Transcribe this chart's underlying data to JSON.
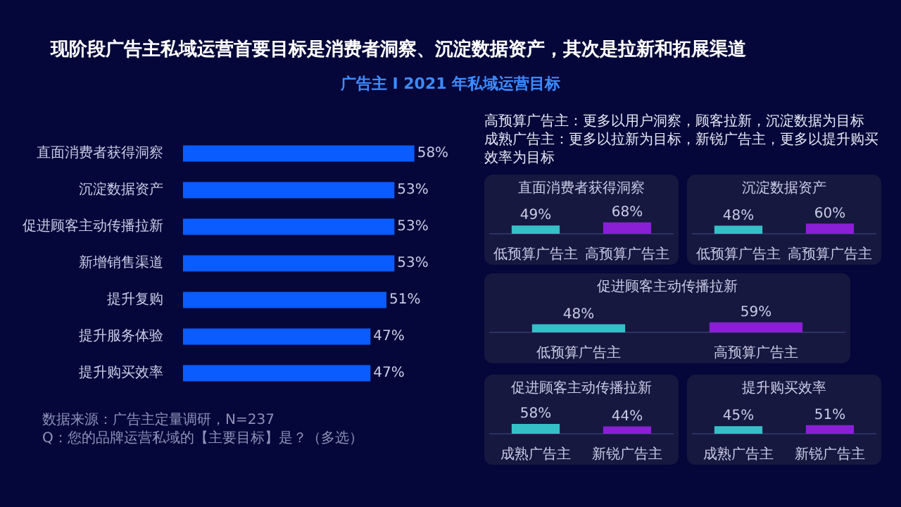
{
  "chart_data": [
    {
      "type": "bar",
      "title": "现阶段广告主私域运营首要目标是消费者洞察、沉淀数据资产，其次是拉新和拓展渠道",
      "subtitle": "广告主 I 2021 年私域运营目标",
      "orientation": "horizontal",
      "categories": [
        "直面消费者获得洞察",
        "沉淀数据资产",
        "促进顾客主动传播拉新",
        "新增销售渠道",
        "提升复购",
        "提升服务体验",
        "提升购买效率"
      ],
      "values": [
        58,
        53,
        53,
        53,
        51,
        47,
        47
      ],
      "value_labels": [
        "58%",
        "53%",
        "53%",
        "53%",
        "51%",
        "47%",
        "47%"
      ],
      "color": "#0a5cff",
      "annotations": [
        "数据来源：广告主定量调研，N=237",
        "Q：您的品牌运营私域的【主要目标】是？（多选）"
      ]
    },
    {
      "type": "bar",
      "title": "直面消费者获得洞察",
      "categories": [
        "低预算广告主",
        "高预算广告主"
      ],
      "values": [
        49,
        68
      ],
      "value_labels": [
        "49%",
        "68%"
      ],
      "colors": [
        "#35c0c8",
        "#8a1fd6"
      ],
      "annotations": [
        "高预算广告主：更多以用户洞察，顾客拉新，沉淀数据为目标",
        "成熟广告主：更多以拉新为目标，新锐广告主，更多以提升购买效率为目标"
      ]
    },
    {
      "type": "bar",
      "title": "沉淀数据资产",
      "categories": [
        "低预算广告主",
        "高预算广告主"
      ],
      "values": [
        48,
        60
      ],
      "value_labels": [
        "48%",
        "60%"
      ],
      "colors": [
        "#35c0c8",
        "#8a1fd6"
      ]
    },
    {
      "type": "bar",
      "title": "促进顾客主动传播拉新",
      "categories": [
        "低预算广告主",
        "高预算广告主"
      ],
      "values": [
        48,
        59
      ],
      "value_labels": [
        "48%",
        "59%"
      ],
      "colors": [
        "#35c0c8",
        "#8a1fd6"
      ]
    },
    {
      "type": "bar",
      "title": "促进顾客主动传播拉新",
      "categories": [
        "成熟广告主",
        "新锐广告主"
      ],
      "values": [
        58,
        44
      ],
      "value_labels": [
        "58%",
        "44%"
      ],
      "colors": [
        "#35c0c8",
        "#8a1fd6"
      ]
    },
    {
      "type": "bar",
      "title": "提升购买效率",
      "categories": [
        "成熟广告主",
        "新锐广告主"
      ],
      "values": [
        45,
        51
      ],
      "value_labels": [
        "45%",
        "51%"
      ],
      "colors": [
        "#35c0c8",
        "#8a1fd6"
      ]
    }
  ]
}
